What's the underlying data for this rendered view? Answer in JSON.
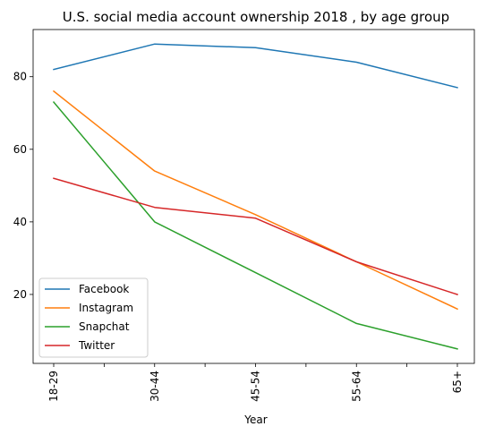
{
  "chart_data": {
    "type": "line",
    "title": "U.S. social media account ownership 2018 , by age group",
    "xlabel": "Year",
    "ylabel": "",
    "categories": [
      "18-29",
      "30-44",
      "45-54",
      "55-64",
      "65+"
    ],
    "ylim": [
      1,
      93
    ],
    "yticks": [
      20,
      40,
      60,
      80
    ],
    "grid": false,
    "legend_position": "lower-left",
    "series": [
      {
        "name": "Facebook",
        "color": "#1f77b4",
        "values": [
          82,
          89,
          88,
          84,
          77
        ]
      },
      {
        "name": "Instagram",
        "color": "#ff7f0e",
        "values": [
          76,
          54,
          42,
          29,
          16
        ]
      },
      {
        "name": "Snapchat",
        "color": "#2ca02c",
        "values": [
          73,
          40,
          26,
          12,
          5
        ]
      },
      {
        "name": "Twitter",
        "color": "#d62728",
        "values": [
          52,
          44,
          41,
          29,
          20
        ]
      }
    ]
  }
}
